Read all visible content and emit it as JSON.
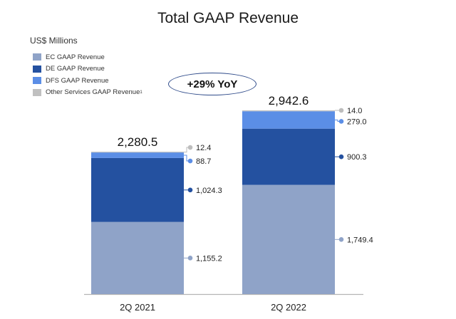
{
  "chart_data": {
    "type": "bar",
    "stacked": true,
    "title": "Total GAAP Revenue",
    "units": "US$ Millions",
    "categories": [
      "2Q 2021",
      "2Q 2022"
    ],
    "series": [
      {
        "name": "EC GAAP Revenue",
        "color": "#8fa3c8",
        "values": [
          1155.2,
          1749.4
        ],
        "labels": [
          "1,155.2",
          "1,749.4"
        ]
      },
      {
        "name": "DE GAAP Revenue",
        "color": "#2451a0",
        "values": [
          1024.3,
          900.3
        ],
        "labels": [
          "1,024.3",
          "900.3"
        ]
      },
      {
        "name": "DFS GAAP Revenue",
        "color": "#5b8ee6",
        "values": [
          88.7,
          279.0
        ],
        "labels": [
          "88.7",
          "279.0"
        ]
      },
      {
        "name": "Other Services GAAP Revenue",
        "footnote": "1",
        "color": "#c0c0c0",
        "values": [
          12.4,
          14.0
        ],
        "labels": [
          "12.4",
          "14.0"
        ]
      }
    ],
    "totals": [
      2280.5,
      2942.6
    ],
    "total_labels": [
      "2,280.5",
      "2,942.6"
    ],
    "annotation": "+29% YoY",
    "ylim": [
      0,
      2942.6
    ],
    "grid": false,
    "legend_position": "top-left"
  }
}
